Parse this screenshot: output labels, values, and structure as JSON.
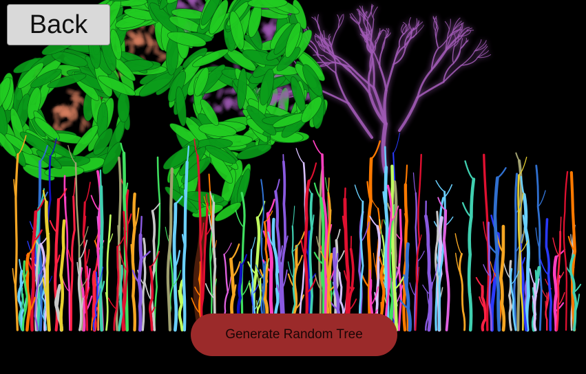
{
  "nav": {
    "back_label": "Back"
  },
  "actions": {
    "generate_label": "Generate Random Tree",
    "generate_color": "#9b2a2a"
  },
  "scene": {
    "background_color": "#000000",
    "leaf_green": "#22cc22",
    "leaf_dark_green": "#0a9a1a",
    "branch_salmon": "#d98060",
    "branch_purple": "#a05ab5",
    "glow_color": "#bb66ff",
    "grass_palette": [
      "#ff2244",
      "#e01030",
      "#8a5ae0",
      "#d8c0ff",
      "#2a3aff",
      "#1010c0",
      "#f5a623",
      "#ff7a00",
      "#e8d030",
      "#c8c8c8",
      "#6ad0ff",
      "#3070d0",
      "#ff40c0",
      "#40e060",
      "#40d0b0",
      "#a0a070",
      "#e060e0",
      "#c0ff60"
    ]
  }
}
